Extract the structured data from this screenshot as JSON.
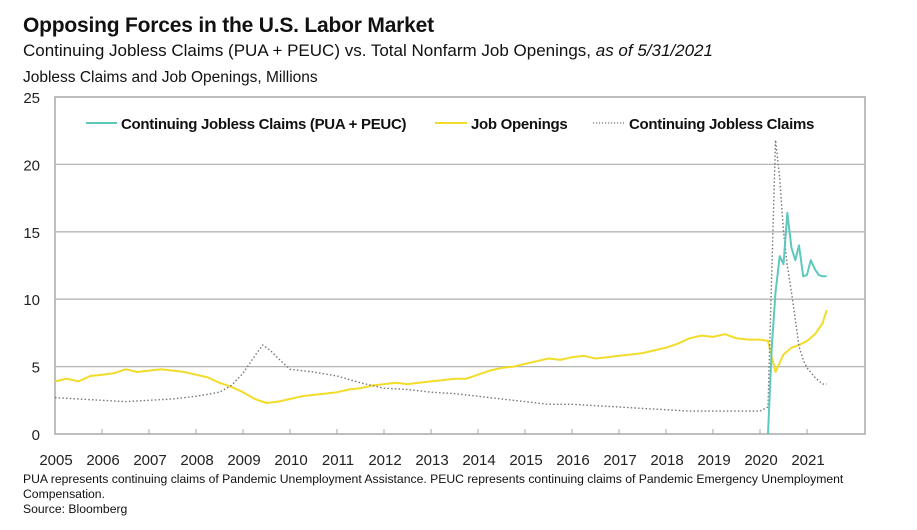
{
  "header": {
    "title": "Opposing Forces in the U.S. Labor Market",
    "subtitle_main": "Continuing Jobless Claims (PUA + PEUC) vs. Total Nonfarm Job Openings, ",
    "subtitle_italic": "as of 5/31/2021",
    "y_axis_title": "Jobless Claims and Job Openings, Millions"
  },
  "footnote": {
    "line1": "PUA represents continuing claims of Pandemic Unemployment Assistance. PEUC represents continuing claims of Pandemic Emergency Unemployment",
    "line2": "Compensation.",
    "source": "Source: Bloomberg"
  },
  "colors": {
    "pua_peuc": "#5ec8bc",
    "job_openings": "#f2dc2a",
    "continuing_claims": "#777777",
    "grid": "#b5b5b5",
    "axis": "#a8a8a8"
  },
  "chart_data": {
    "type": "line",
    "title": "Opposing Forces in the U.S. Labor Market",
    "subtitle": "Continuing Jobless Claims (PUA + PEUC) vs. Total Nonfarm Job Openings, as of 5/31/2021",
    "xlabel": "",
    "ylabel": "Jobless Claims and Job Openings, Millions",
    "xlim": [
      2005.0,
      2022.0
    ],
    "ylim": [
      0,
      25
    ],
    "yticks": [
      "0",
      "5",
      "10",
      "15",
      "20",
      "25"
    ],
    "xticks": [
      "2005",
      "2006",
      "2007",
      "2008",
      "2009",
      "2010",
      "2011",
      "2012",
      "2013",
      "2014",
      "2015",
      "2016",
      "2017",
      "2018",
      "2019",
      "2020",
      "2021"
    ],
    "grid": true,
    "legend_position": "top",
    "legend": [
      "Continuing Jobless Claims (PUA + PEUC)",
      "Job Openings",
      "Continuing Jobless Claims"
    ],
    "series": [
      {
        "name": "Continuing Jobless Claims (PUA + PEUC)",
        "style": "solid",
        "x": [
          2020.17,
          2020.25,
          2020.33,
          2020.42,
          2020.5,
          2020.58,
          2020.67,
          2020.75,
          2020.83,
          2020.92,
          2021.0,
          2021.08,
          2021.17,
          2021.25,
          2021.33,
          2021.42
        ],
        "y": [
          0,
          6.5,
          10.5,
          13.2,
          12.6,
          16.4,
          13.8,
          12.9,
          14.0,
          11.7,
          11.8,
          12.9,
          12.2,
          11.8,
          11.7,
          11.7
        ]
      },
      {
        "name": "Job Openings",
        "style": "solid",
        "x": [
          2005.0,
          2005.25,
          2005.5,
          2005.75,
          2006.0,
          2006.25,
          2006.5,
          2006.75,
          2007.0,
          2007.25,
          2007.5,
          2007.75,
          2008.0,
          2008.25,
          2008.5,
          2008.75,
          2009.0,
          2009.25,
          2009.5,
          2009.75,
          2010.0,
          2010.25,
          2010.5,
          2010.75,
          2011.0,
          2011.25,
          2011.5,
          2011.75,
          2012.0,
          2012.25,
          2012.5,
          2012.75,
          2013.0,
          2013.25,
          2013.5,
          2013.75,
          2014.0,
          2014.25,
          2014.5,
          2014.75,
          2015.0,
          2015.25,
          2015.5,
          2015.75,
          2016.0,
          2016.25,
          2016.5,
          2016.75,
          2017.0,
          2017.25,
          2017.5,
          2017.75,
          2018.0,
          2018.25,
          2018.5,
          2018.75,
          2019.0,
          2019.25,
          2019.5,
          2019.75,
          2020.0,
          2020.17,
          2020.25,
          2020.33,
          2020.5,
          2020.67,
          2020.83,
          2021.0,
          2021.17,
          2021.33,
          2021.42
        ],
        "y": [
          3.9,
          4.1,
          3.9,
          4.3,
          4.4,
          4.5,
          4.8,
          4.6,
          4.7,
          4.8,
          4.7,
          4.6,
          4.4,
          4.2,
          3.8,
          3.5,
          3.1,
          2.6,
          2.3,
          2.4,
          2.6,
          2.8,
          2.9,
          3.0,
          3.1,
          3.3,
          3.4,
          3.6,
          3.7,
          3.8,
          3.7,
          3.8,
          3.9,
          4.0,
          4.1,
          4.1,
          4.4,
          4.7,
          4.9,
          5.0,
          5.2,
          5.4,
          5.6,
          5.5,
          5.7,
          5.8,
          5.6,
          5.7,
          5.8,
          5.9,
          6.0,
          6.2,
          6.4,
          6.7,
          7.1,
          7.3,
          7.2,
          7.4,
          7.1,
          7.0,
          7.0,
          6.9,
          5.7,
          4.6,
          5.9,
          6.4,
          6.6,
          6.9,
          7.4,
          8.2,
          9.2
        ]
      },
      {
        "name": "Continuing Jobless Claims",
        "style": "dotted",
        "x": [
          2005.0,
          2005.5,
          2006.0,
          2006.5,
          2007.0,
          2007.5,
          2008.0,
          2008.5,
          2008.75,
          2009.0,
          2009.25,
          2009.42,
          2009.58,
          2009.75,
          2010.0,
          2010.5,
          2011.0,
          2011.5,
          2012.0,
          2012.5,
          2013.0,
          2013.5,
          2014.0,
          2014.5,
          2015.0,
          2015.5,
          2016.0,
          2016.5,
          2017.0,
          2017.5,
          2018.0,
          2018.5,
          2019.0,
          2019.5,
          2020.0,
          2020.17,
          2020.25,
          2020.33,
          2020.42,
          2020.5,
          2020.58,
          2020.67,
          2020.75,
          2020.83,
          2020.92,
          2021.0,
          2021.17,
          2021.33,
          2021.42
        ],
        "y": [
          2.7,
          2.6,
          2.5,
          2.4,
          2.5,
          2.6,
          2.8,
          3.1,
          3.6,
          4.5,
          5.8,
          6.6,
          6.2,
          5.6,
          4.8,
          4.6,
          4.3,
          3.8,
          3.4,
          3.3,
          3.1,
          3.0,
          2.8,
          2.6,
          2.4,
          2.2,
          2.2,
          2.1,
          2.0,
          1.9,
          1.8,
          1.7,
          1.7,
          1.7,
          1.7,
          2.0,
          12.0,
          21.8,
          19.0,
          15.0,
          12.5,
          10.5,
          8.5,
          6.5,
          5.5,
          4.9,
          4.2,
          3.7,
          3.7
        ]
      }
    ]
  }
}
